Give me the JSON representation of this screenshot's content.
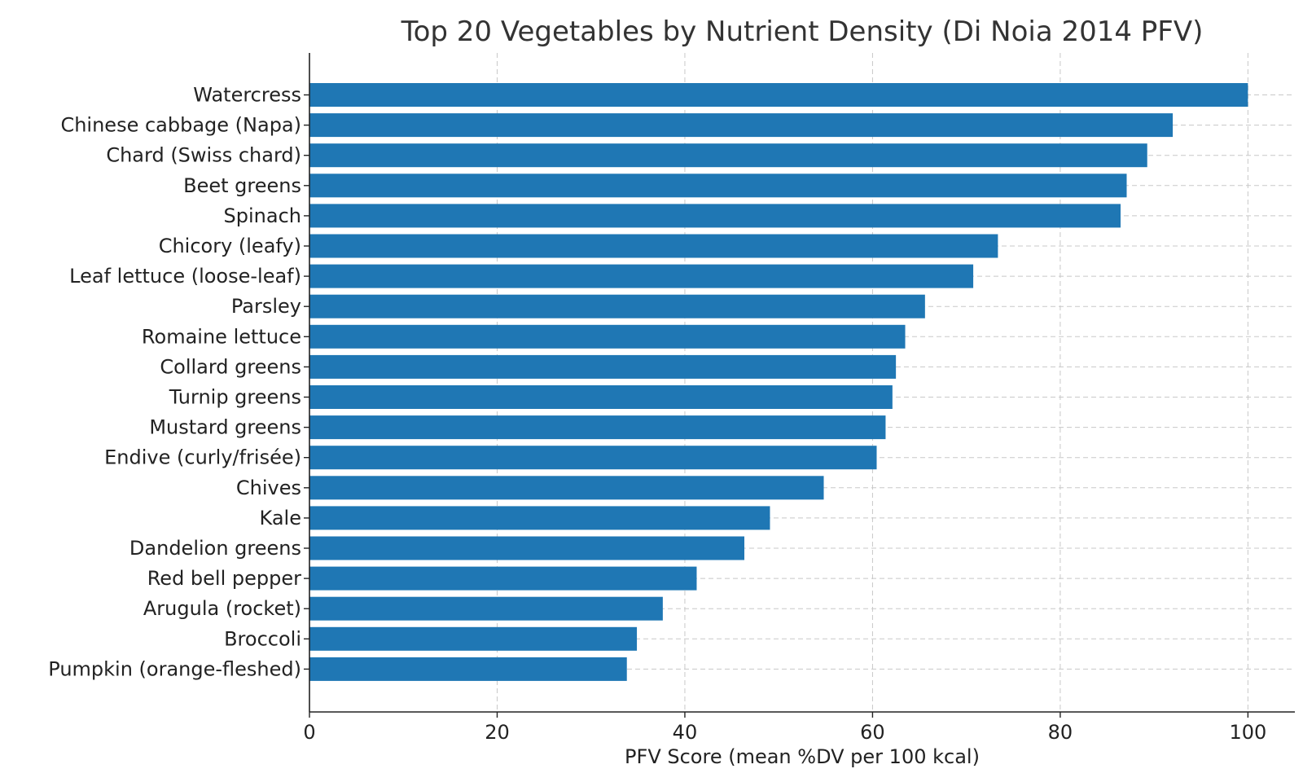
{
  "chart_data": {
    "type": "bar",
    "orientation": "horizontal",
    "title": "Top 20 Vegetables by Nutrient Density (Di Noia 2014 PFV)",
    "xlabel": "PFV Score (mean %DV per 100 kcal)",
    "ylabel": "",
    "xlim": [
      0,
      105
    ],
    "xticks": [
      0,
      20,
      40,
      60,
      80,
      100
    ],
    "grid": true,
    "bar_color": "#1f77b4",
    "categories": [
      "Watercress",
      "Chinese cabbage (Napa)",
      "Chard (Swiss chard)",
      "Beet greens",
      "Spinach",
      "Chicory (leafy)",
      "Leaf lettuce (loose-leaf)",
      "Parsley",
      "Romaine lettuce",
      "Collard greens",
      "Turnip greens",
      "Mustard greens",
      "Endive (curly/frisée)",
      "Chives",
      "Kale",
      "Dandelion greens",
      "Red bell pepper",
      "Arugula (rocket)",
      "Broccoli",
      "Pumpkin (orange-fleshed)"
    ],
    "values": [
      100.0,
      91.99,
      89.27,
      87.08,
      86.43,
      73.36,
      70.73,
      65.59,
      63.48,
      62.49,
      62.12,
      61.39,
      60.44,
      54.8,
      49.07,
      46.34,
      41.26,
      37.65,
      34.89,
      33.82
    ]
  }
}
